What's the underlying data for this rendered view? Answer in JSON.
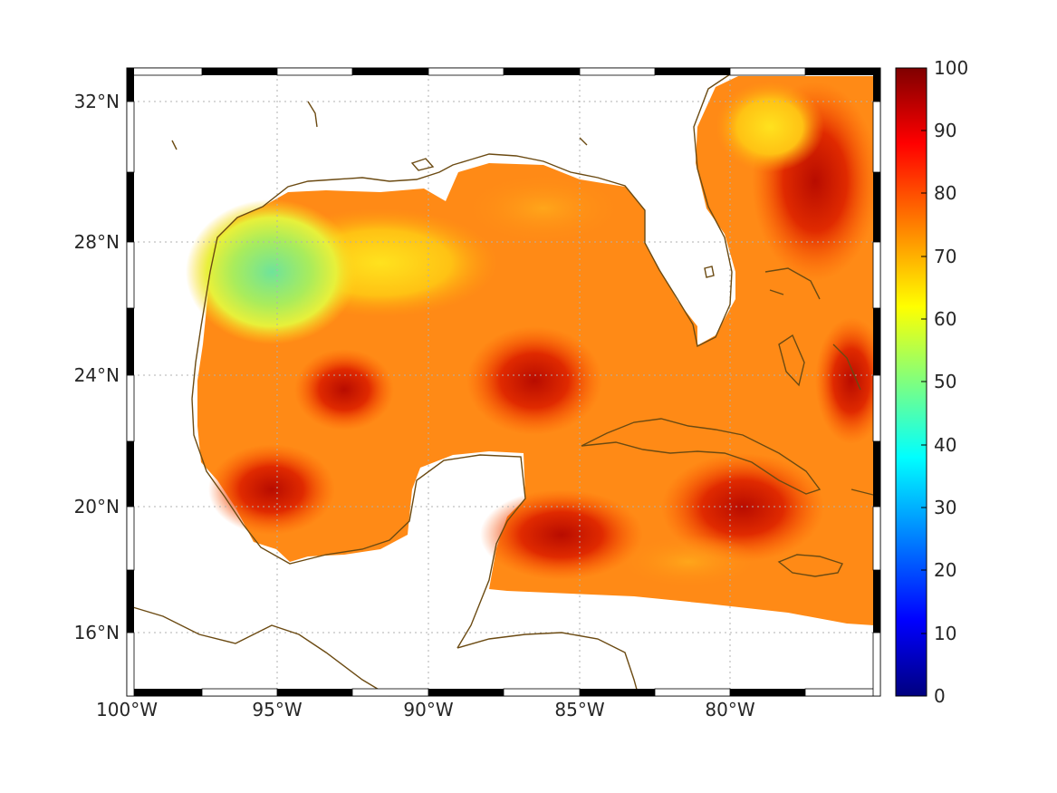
{
  "map": {
    "lon_labels": [
      "100°W",
      "95°W",
      "90°W",
      "85°W",
      "80°W"
    ],
    "lat_labels": [
      "32°N",
      "28°N",
      "24°N",
      "20°N",
      "16°N"
    ],
    "lon_range": [
      -100,
      -75
    ],
    "lat_range": [
      14.5,
      32.8
    ],
    "grid": "dotted",
    "coastline_color": "#6b4a12",
    "frame_colors": [
      "#000000",
      "#ffffff"
    ]
  },
  "colorbar": {
    "ticks": [
      "0",
      "10",
      "20",
      "30",
      "40",
      "50",
      "60",
      "70",
      "80",
      "90",
      "100"
    ],
    "range": [
      0,
      100
    ],
    "colormap": "jet",
    "stops": [
      "#00007f",
      "#0000ff",
      "#007fff",
      "#00ffff",
      "#7fff7f",
      "#ffff00",
      "#ff7f00",
      "#ff0000",
      "#7f0000"
    ]
  },
  "field": {
    "dominant_color": "#ff7a1a",
    "high_color": "#cc1400",
    "low_color": "#7de38c"
  }
}
